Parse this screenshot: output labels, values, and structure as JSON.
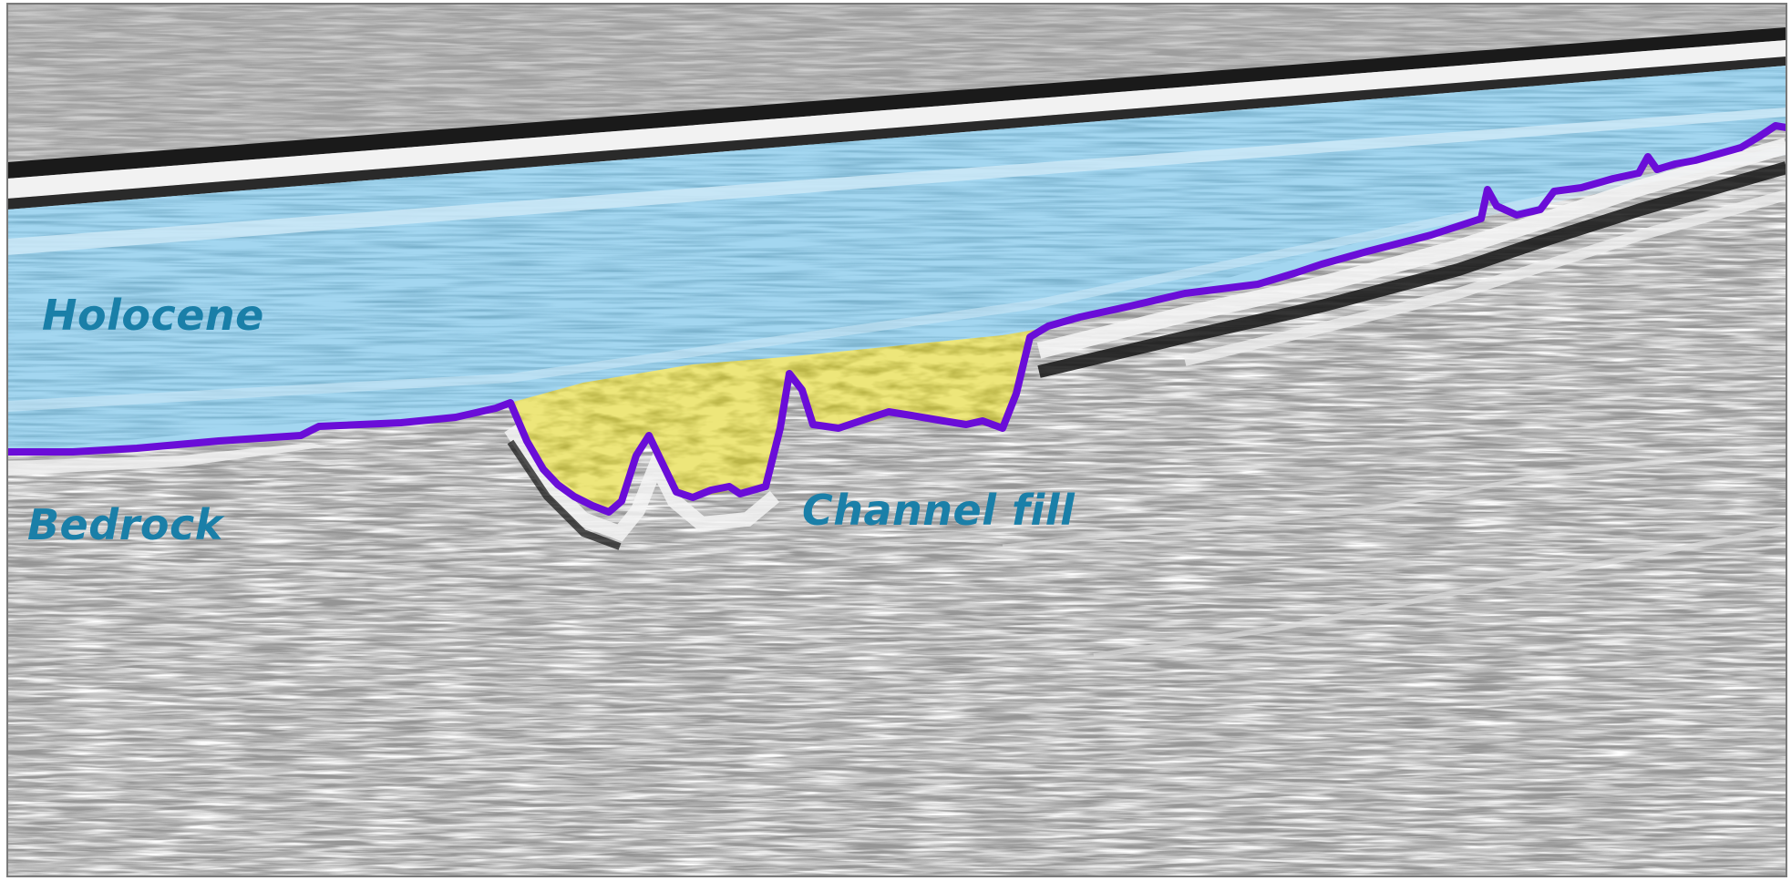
{
  "figure": {
    "type": "seismic-reflection-profile",
    "labels": {
      "holocene": "Holocene",
      "bedrock": "Bedrock",
      "channel_fill": "Channel fill"
    },
    "colors": {
      "label_text": "#1a7fa8",
      "holocene_overlay": "#9fd3ee",
      "channel_fill_overlay": "#e6e36a",
      "interpreted_horizon": "#6a0dd8",
      "seismic_background": "#8c8c8c",
      "frame": "#7a7a7a"
    },
    "interpreted_units": [
      "holocene",
      "channel-fill",
      "bedrock"
    ],
    "horizon": "purple interpreted boundary at base of Holocene / channel fill"
  }
}
